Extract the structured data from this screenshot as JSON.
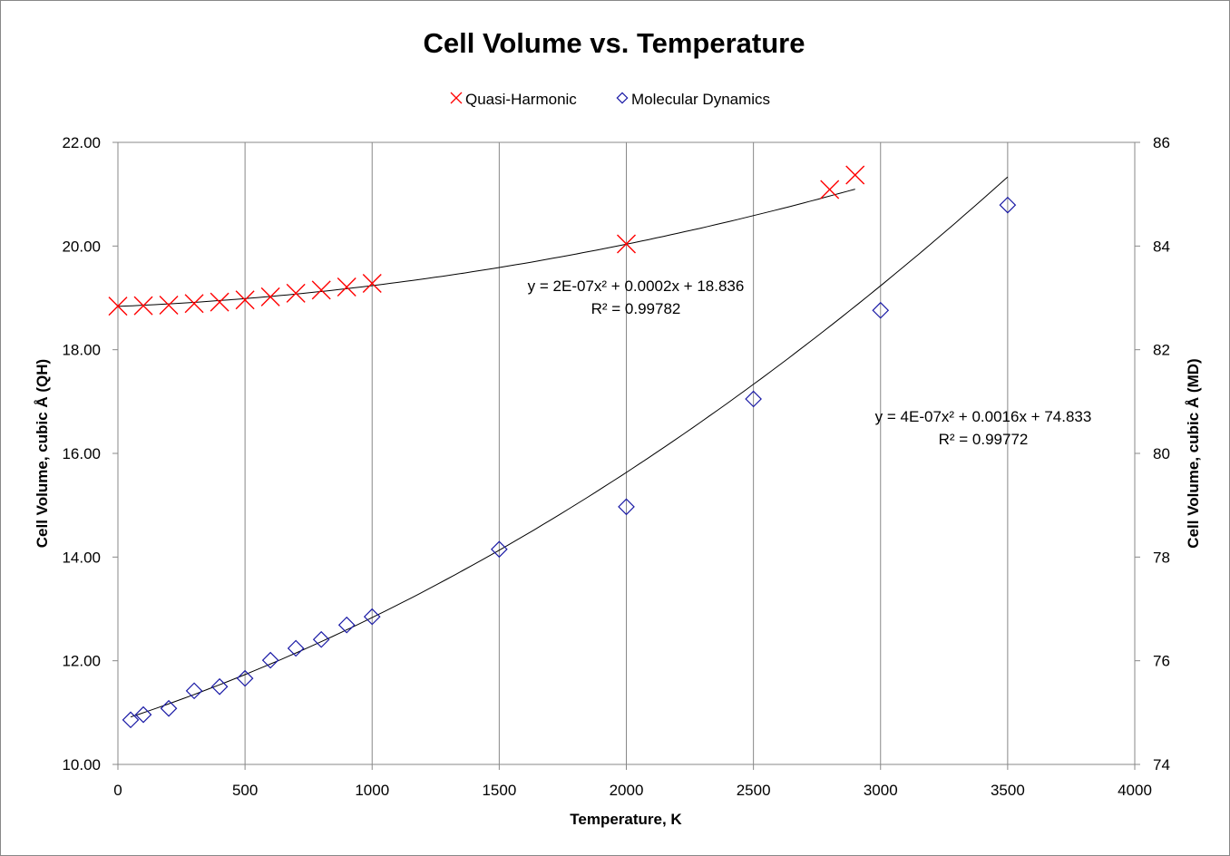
{
  "chart_data": {
    "type": "scatter",
    "title": "Cell Volume vs. Temperature",
    "xlabel": "Temperature, K",
    "ylabel_left": "Cell Volume, cubic Å (QH)",
    "ylabel_right": "Cell Volume, cubic Å (MD)",
    "xlim": [
      0,
      4000
    ],
    "ylim_left": [
      10,
      22
    ],
    "ylim_right": [
      74,
      86
    ],
    "x_ticks": [
      "0",
      "500",
      "1000",
      "1500",
      "2000",
      "2500",
      "3000",
      "3500",
      "4000"
    ],
    "y_ticks_left": [
      "10.00",
      "12.00",
      "14.00",
      "16.00",
      "18.00",
      "20.00",
      "22.00"
    ],
    "y_ticks_right": [
      "74",
      "76",
      "78",
      "80",
      "82",
      "84",
      "86"
    ],
    "grid": "vertical",
    "legend_position": "top",
    "series": [
      {
        "name": "Quasi-Harmonic",
        "axis": "left",
        "marker": "x",
        "color": "#ff0000",
        "x": [
          0,
          100,
          200,
          300,
          400,
          500,
          600,
          700,
          800,
          900,
          1000,
          2000,
          2800,
          2900
        ],
        "y": [
          18.84,
          18.85,
          18.86,
          18.89,
          18.92,
          18.96,
          19.02,
          19.09,
          19.15,
          19.21,
          19.28,
          20.04,
          21.09,
          21.37
        ],
        "trendline": {
          "a": 2e-07,
          "b": 0.0002,
          "c": 18.836,
          "range": [
            0,
            2900
          ],
          "equation": "y = 2E-07x² + 0.0002x + 18.836",
          "r2": "R² = 0.99782"
        }
      },
      {
        "name": "Molecular Dynamics",
        "axis": "right",
        "marker": "diamond",
        "color": "#1a1aa6",
        "x": [
          50,
          100,
          200,
          300,
          400,
          500,
          600,
          700,
          800,
          900,
          1000,
          1500,
          2000,
          2500,
          3000,
          3500
        ],
        "y": [
          74.86,
          74.96,
          75.08,
          75.42,
          75.5,
          75.66,
          76.01,
          76.24,
          76.41,
          76.69,
          76.85,
          78.15,
          78.97,
          81.05,
          82.76,
          84.79
        ],
        "trendline": {
          "a": 4e-07,
          "b": 0.0016,
          "c": 74.833,
          "range": [
            50,
            3500
          ],
          "equation": "y = 4E-07x² + 0.0016x + 74.833",
          "r2": "R² = 0.99772"
        }
      }
    ]
  }
}
